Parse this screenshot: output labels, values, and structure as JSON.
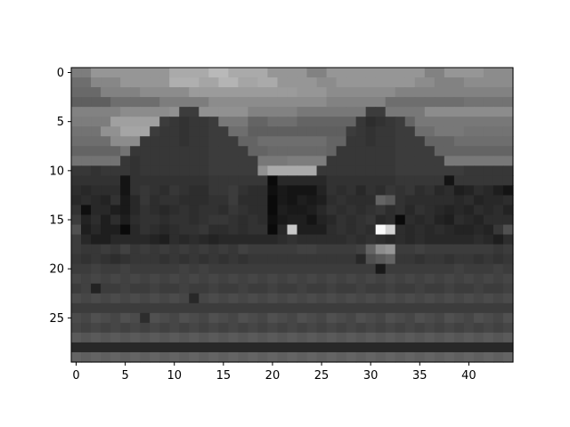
{
  "chart_data": {
    "type": "heatmap",
    "colormap": "gray",
    "grid": false,
    "title": "",
    "xlabel": "",
    "ylabel": "",
    "x_range": [
      -0.5,
      44.5
    ],
    "y_range": [
      29.5,
      -0.5
    ],
    "x_ticks": [
      0,
      5,
      10,
      15,
      20,
      25,
      30,
      35,
      40
    ],
    "y_ticks": [
      0,
      5,
      10,
      15,
      20,
      25
    ],
    "columns": 45,
    "rows_count": 30,
    "value_range": [
      0,
      255
    ],
    "rows": [
      [
        125,
        125,
        150,
        150,
        150,
        150,
        150,
        150,
        150,
        150,
        170,
        170,
        170,
        170,
        185,
        185,
        170,
        170,
        170,
        170,
        150,
        150,
        150,
        150,
        130,
        130,
        150,
        150,
        150,
        150,
        150,
        150,
        150,
        150,
        150,
        150,
        130,
        130,
        150,
        150,
        150,
        150,
        140,
        140,
        140
      ],
      [
        110,
        110,
        135,
        135,
        135,
        150,
        150,
        150,
        150,
        150,
        175,
        175,
        175,
        165,
        165,
        180,
        180,
        165,
        165,
        170,
        170,
        150,
        150,
        150,
        150,
        140,
        140,
        150,
        150,
        150,
        150,
        150,
        150,
        150,
        150,
        140,
        140,
        130,
        130,
        130,
        140,
        140,
        140,
        140,
        140
      ],
      [
        105,
        105,
        105,
        130,
        130,
        130,
        130,
        140,
        140,
        140,
        140,
        140,
        155,
        155,
        155,
        155,
        155,
        155,
        155,
        155,
        155,
        155,
        155,
        150,
        150,
        150,
        140,
        140,
        140,
        140,
        140,
        140,
        140,
        130,
        130,
        130,
        130,
        130,
        130,
        130,
        130,
        130,
        130,
        130,
        130
      ],
      [
        95,
        95,
        95,
        95,
        110,
        110,
        110,
        110,
        110,
        125,
        125,
        125,
        125,
        125,
        140,
        140,
        140,
        140,
        140,
        140,
        140,
        140,
        140,
        140,
        140,
        140,
        130,
        130,
        130,
        130,
        130,
        130,
        110,
        110,
        110,
        110,
        110,
        110,
        110,
        110,
        115,
        115,
        115,
        115,
        115
      ],
      [
        130,
        130,
        130,
        130,
        130,
        140,
        140,
        140,
        140,
        140,
        145,
        60,
        60,
        145,
        145,
        145,
        145,
        145,
        130,
        130,
        130,
        130,
        130,
        120,
        120,
        120,
        120,
        120,
        120,
        120,
        60,
        60,
        120,
        120,
        120,
        120,
        140,
        140,
        140,
        140,
        140,
        140,
        140,
        140,
        140
      ],
      [
        125,
        125,
        125,
        125,
        160,
        160,
        160,
        160,
        160,
        60,
        55,
        50,
        55,
        55,
        60,
        120,
        120,
        120,
        100,
        100,
        110,
        110,
        110,
        100,
        100,
        100,
        100,
        100,
        100,
        55,
        45,
        50,
        55,
        60,
        100,
        120,
        120,
        120,
        120,
        120,
        120,
        120,
        120,
        120,
        120
      ],
      [
        115,
        115,
        115,
        145,
        145,
        165,
        165,
        165,
        60,
        55,
        55,
        50,
        55,
        55,
        60,
        60,
        110,
        110,
        95,
        95,
        95,
        95,
        95,
        95,
        95,
        95,
        95,
        95,
        60,
        55,
        50,
        55,
        55,
        60,
        60,
        110,
        110,
        120,
        120,
        120,
        115,
        115,
        115,
        115,
        115
      ],
      [
        110,
        110,
        110,
        110,
        140,
        140,
        140,
        55,
        55,
        55,
        55,
        50,
        55,
        55,
        60,
        60,
        60,
        100,
        100,
        110,
        110,
        110,
        110,
        110,
        110,
        110,
        100,
        100,
        55,
        55,
        50,
        55,
        55,
        60,
        60,
        60,
        100,
        100,
        100,
        110,
        110,
        110,
        110,
        110,
        110
      ],
      [
        100,
        100,
        100,
        100,
        100,
        115,
        55,
        55,
        55,
        55,
        55,
        55,
        55,
        55,
        60,
        60,
        60,
        60,
        100,
        100,
        105,
        105,
        105,
        105,
        105,
        105,
        100,
        55,
        55,
        55,
        55,
        55,
        55,
        60,
        60,
        60,
        60,
        100,
        100,
        100,
        100,
        100,
        100,
        100,
        100
      ],
      [
        115,
        115,
        115,
        115,
        115,
        55,
        50,
        55,
        55,
        55,
        55,
        55,
        55,
        55,
        60,
        60,
        60,
        60,
        60,
        120,
        120,
        120,
        125,
        125,
        125,
        125,
        55,
        55,
        55,
        55,
        55,
        55,
        55,
        60,
        60,
        60,
        60,
        60,
        120,
        120,
        120,
        120,
        120,
        120,
        120
      ],
      [
        55,
        55,
        50,
        55,
        55,
        55,
        50,
        55,
        55,
        55,
        55,
        55,
        55,
        55,
        60,
        60,
        60,
        60,
        60,
        145,
        170,
        170,
        170,
        170,
        170,
        55,
        55,
        55,
        55,
        55,
        55,
        55,
        55,
        60,
        60,
        60,
        60,
        60,
        60,
        60,
        55,
        55,
        55,
        55,
        55
      ],
      [
        50,
        50,
        50,
        50,
        50,
        20,
        50,
        50,
        50,
        50,
        50,
        50,
        50,
        50,
        55,
        55,
        55,
        55,
        55,
        55,
        10,
        40,
        40,
        40,
        40,
        40,
        50,
        50,
        50,
        50,
        50,
        50,
        50,
        55,
        55,
        55,
        55,
        55,
        20,
        55,
        55,
        55,
        55,
        55,
        55
      ],
      [
        45,
        40,
        45,
        45,
        45,
        20,
        50,
        55,
        50,
        45,
        55,
        50,
        45,
        45,
        55,
        55,
        60,
        50,
        45,
        45,
        15,
        25,
        20,
        20,
        20,
        35,
        50,
        45,
        50,
        40,
        50,
        45,
        55,
        50,
        55,
        45,
        50,
        40,
        45,
        30,
        35,
        45,
        40,
        30,
        20
      ],
      [
        40,
        45,
        40,
        35,
        50,
        25,
        40,
        55,
        45,
        50,
        50,
        45,
        45,
        45,
        50,
        50,
        60,
        45,
        45,
        45,
        10,
        25,
        20,
        30,
        25,
        30,
        45,
        50,
        45,
        45,
        45,
        100,
        90,
        50,
        45,
        45,
        45,
        45,
        45,
        40,
        45,
        35,
        40,
        40,
        45
      ],
      [
        50,
        15,
        40,
        40,
        30,
        25,
        40,
        50,
        45,
        40,
        45,
        50,
        45,
        50,
        50,
        45,
        55,
        50,
        45,
        45,
        10,
        30,
        25,
        25,
        30,
        40,
        50,
        45,
        50,
        45,
        50,
        55,
        45,
        50,
        40,
        50,
        45,
        40,
        35,
        40,
        35,
        45,
        40,
        45,
        35
      ],
      [
        60,
        35,
        45,
        30,
        45,
        30,
        45,
        50,
        50,
        45,
        50,
        50,
        45,
        50,
        55,
        55,
        50,
        45,
        50,
        45,
        15,
        25,
        30,
        30,
        20,
        35,
        40,
        50,
        45,
        50,
        55,
        40,
        45,
        10,
        45,
        40,
        45,
        35,
        30,
        45,
        40,
        35,
        45,
        45,
        45
      ],
      [
        80,
        30,
        40,
        30,
        30,
        10,
        40,
        50,
        45,
        40,
        45,
        50,
        50,
        55,
        45,
        45,
        50,
        45,
        50,
        50,
        10,
        40,
        200,
        30,
        30,
        30,
        45,
        50,
        45,
        50,
        45,
        250,
        210,
        45,
        40,
        45,
        40,
        45,
        40,
        35,
        35,
        40,
        35,
        55,
        80
      ],
      [
        60,
        40,
        30,
        30,
        40,
        40,
        40,
        40,
        35,
        30,
        45,
        40,
        45,
        40,
        35,
        40,
        40,
        40,
        40,
        40,
        40,
        45,
        50,
        45,
        45,
        45,
        45,
        45,
        50,
        45,
        50,
        45,
        40,
        45,
        40,
        45,
        40,
        40,
        40,
        40,
        40,
        45,
        40,
        30,
        45
      ],
      [
        60,
        55,
        55,
        60,
        55,
        65,
        55,
        60,
        55,
        60,
        55,
        60,
        55,
        60,
        55,
        60,
        55,
        65,
        60,
        60,
        60,
        60,
        60,
        65,
        65,
        60,
        60,
        60,
        60,
        65,
        100,
        140,
        150,
        60,
        60,
        65,
        60,
        60,
        60,
        60,
        60,
        60,
        60,
        55,
        60
      ],
      [
        55,
        50,
        55,
        50,
        45,
        50,
        55,
        55,
        55,
        50,
        55,
        50,
        55,
        50,
        55,
        50,
        55,
        50,
        55,
        55,
        55,
        55,
        55,
        55,
        55,
        55,
        55,
        55,
        55,
        40,
        80,
        90,
        100,
        55,
        55,
        50,
        55,
        55,
        50,
        55,
        55,
        50,
        55,
        50,
        55
      ],
      [
        60,
        60,
        65,
        60,
        60,
        65,
        60,
        60,
        60,
        60,
        60,
        65,
        60,
        65,
        60,
        60,
        60,
        60,
        60,
        60,
        60,
        60,
        60,
        60,
        60,
        60,
        60,
        60,
        60,
        60,
        60,
        25,
        60,
        60,
        60,
        60,
        60,
        60,
        60,
        65,
        60,
        60,
        60,
        65,
        60
      ],
      [
        70,
        65,
        70,
        65,
        70,
        65,
        70,
        65,
        70,
        65,
        70,
        65,
        70,
        65,
        70,
        65,
        70,
        65,
        70,
        65,
        70,
        65,
        70,
        65,
        70,
        65,
        70,
        65,
        70,
        65,
        70,
        65,
        70,
        65,
        70,
        65,
        70,
        65,
        70,
        65,
        70,
        65,
        70,
        65,
        70
      ],
      [
        60,
        65,
        35,
        60,
        60,
        65,
        60,
        60,
        65,
        60,
        60,
        65,
        60,
        60,
        65,
        60,
        60,
        65,
        60,
        60,
        65,
        60,
        60,
        65,
        60,
        60,
        65,
        60,
        60,
        65,
        60,
        60,
        65,
        60,
        60,
        65,
        60,
        60,
        65,
        60,
        60,
        65,
        60,
        60,
        65
      ],
      [
        75,
        70,
        75,
        70,
        75,
        70,
        75,
        70,
        75,
        70,
        75,
        70,
        40,
        70,
        75,
        70,
        75,
        70,
        75,
        70,
        75,
        70,
        75,
        70,
        75,
        70,
        75,
        70,
        75,
        70,
        75,
        70,
        75,
        70,
        75,
        70,
        75,
        70,
        75,
        70,
        75,
        70,
        75,
        70,
        75
      ],
      [
        60,
        60,
        60,
        60,
        60,
        60,
        60,
        60,
        60,
        60,
        60,
        60,
        60,
        60,
        60,
        60,
        60,
        60,
        60,
        60,
        60,
        60,
        60,
        60,
        60,
        60,
        60,
        60,
        60,
        60,
        60,
        60,
        60,
        60,
        60,
        60,
        60,
        60,
        60,
        60,
        60,
        60,
        60,
        60,
        60
      ],
      [
        75,
        70,
        80,
        75,
        70,
        80,
        75,
        45,
        80,
        75,
        70,
        80,
        75,
        70,
        80,
        75,
        70,
        80,
        75,
        70,
        80,
        75,
        70,
        80,
        75,
        70,
        80,
        75,
        70,
        80,
        75,
        70,
        80,
        75,
        70,
        80,
        75,
        70,
        80,
        75,
        70,
        80,
        75,
        70,
        80
      ],
      [
        70,
        65,
        70,
        65,
        70,
        65,
        70,
        65,
        70,
        65,
        70,
        65,
        70,
        65,
        70,
        65,
        70,
        65,
        70,
        65,
        70,
        65,
        70,
        65,
        70,
        65,
        70,
        65,
        70,
        65,
        70,
        65,
        70,
        65,
        70,
        65,
        70,
        65,
        70,
        65,
        70,
        65,
        70,
        65,
        70
      ],
      [
        90,
        85,
        90,
        85,
        90,
        85,
        90,
        85,
        90,
        85,
        90,
        85,
        90,
        85,
        90,
        85,
        90,
        85,
        90,
        85,
        90,
        85,
        90,
        85,
        90,
        85,
        90,
        85,
        90,
        85,
        90,
        85,
        90,
        85,
        90,
        85,
        90,
        85,
        90,
        85,
        90,
        85,
        90,
        85,
        90
      ],
      [
        40,
        40,
        40,
        40,
        40,
        40,
        40,
        40,
        40,
        40,
        40,
        40,
        40,
        40,
        40,
        40,
        40,
        40,
        40,
        40,
        40,
        40,
        40,
        40,
        40,
        40,
        40,
        40,
        40,
        40,
        40,
        40,
        40,
        40,
        40,
        40,
        40,
        40,
        40,
        40,
        40,
        40,
        40,
        40,
        40
      ],
      [
        100,
        95,
        100,
        95,
        100,
        95,
        100,
        95,
        100,
        95,
        100,
        95,
        100,
        95,
        100,
        95,
        100,
        95,
        100,
        95,
        100,
        95,
        100,
        95,
        100,
        95,
        100,
        95,
        100,
        95,
        100,
        95,
        100,
        95,
        100,
        95,
        100,
        95,
        100,
        95,
        100,
        95,
        100,
        95,
        100
      ]
    ]
  }
}
